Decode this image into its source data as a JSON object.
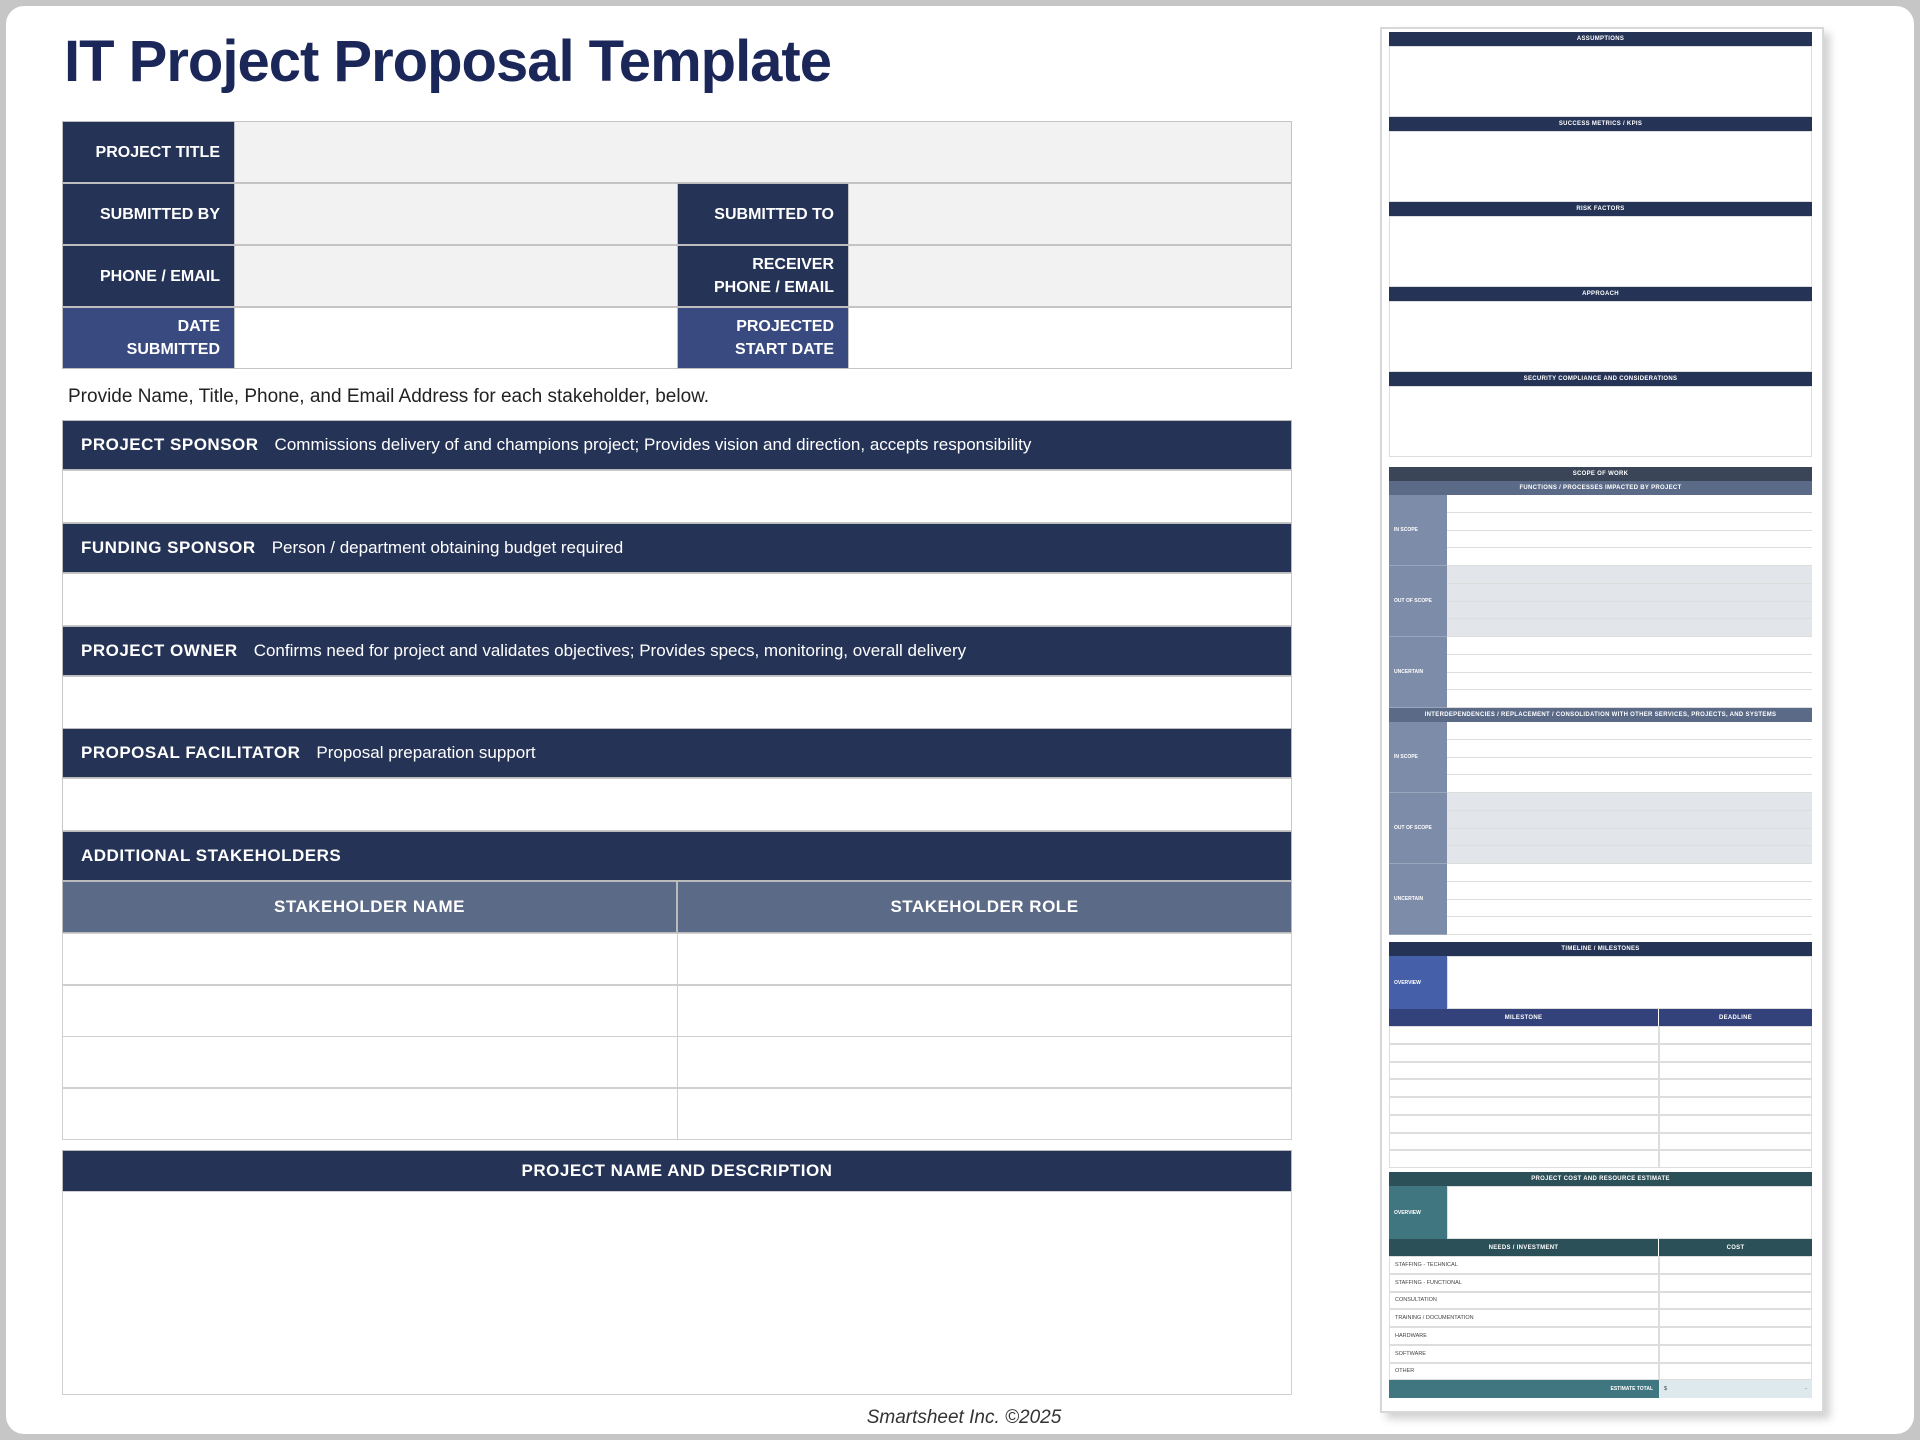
{
  "title": "IT Project Proposal Template",
  "info": {
    "project_title": "PROJECT TITLE",
    "submitted_by": "SUBMITTED BY",
    "submitted_to": "SUBMITTED TO",
    "phone_email": "PHONE / EMAIL",
    "receiver_1": "RECEIVER",
    "receiver_2": "PHONE / EMAIL",
    "date_1": "DATE",
    "date_2": "SUBMITTED",
    "proj_1": "PROJECTED",
    "proj_2": "START DATE"
  },
  "instruction": "Provide Name, Title, Phone, and Email Address for each stakeholder, below.",
  "roles": [
    {
      "name": "PROJECT SPONSOR",
      "desc": "Commissions delivery of and champions project; Provides vision and direction, accepts responsibility"
    },
    {
      "name": "FUNDING SPONSOR",
      "desc": "Person / department obtaining budget required"
    },
    {
      "name": "PROJECT OWNER",
      "desc": "Confirms need for project and validates objectives; Provides specs, monitoring, overall delivery"
    },
    {
      "name": "PROPOSAL FACILITATOR",
      "desc": "Proposal preparation support"
    }
  ],
  "additional": {
    "title": "ADDITIONAL STAKEHOLDERS",
    "col_name": "STAKEHOLDER NAME",
    "col_role": "STAKEHOLDER ROLE"
  },
  "description_title": "PROJECT NAME AND DESCRIPTION",
  "footer": "Smartsheet Inc. ©2025",
  "preview": {
    "sections": [
      "ASSUMPTIONS",
      "SUCCESS METRICS / KPIS",
      "RISK FACTORS",
      "APPROACH",
      "SECURITY COMPLIANCE AND CONSIDERATIONS"
    ],
    "scope_title": "SCOPE OF WORK",
    "scope_sub1": "FUNCTIONS / PROCESSES IMPACTED BY PROJECT",
    "scope_sub2": "INTERDEPENDENCIES / REPLACEMENT / CONSOLIDATION WITH OTHER SERVICES, PROJECTS, AND SYSTEMS",
    "scope_groups": [
      "IN SCOPE",
      "OUT OF SCOPE",
      "UNCERTAIN"
    ],
    "timeline_title": "TIMELINE / MILESTONES",
    "overview": "OVERVIEW",
    "milestone": "MILESTONE",
    "deadline": "DEADLINE",
    "cost_title": "PROJECT COST AND RESOURCE ESTIMATE",
    "needs": "NEEDS / INVESTMENT",
    "cost": "COST",
    "cost_items": [
      "STAFFING - TECHNICAL",
      "STAFFING - FUNCTIONAL",
      "CONSULTATION",
      "TRAINING / DOCUMENTATION",
      "HARDWARE",
      "SOFTWARE",
      "OTHER"
    ],
    "estimate_total": "ESTIMATE TOTAL",
    "currency": "$",
    "total_value": "-"
  },
  "colors": {
    "navy": "#253356",
    "blue": "#384a80",
    "slate": "#5a6a87",
    "teal": "#2c5057"
  }
}
